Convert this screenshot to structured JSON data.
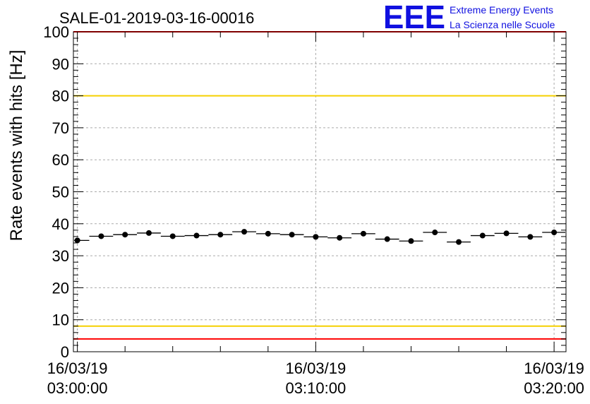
{
  "chart_data": {
    "type": "scatter",
    "title": "SALE-01-2019-03-16-00016",
    "ylabel": "Rate events with hits [Hz]",
    "xlabel": "",
    "ylim": [
      0,
      100
    ],
    "yticks": [
      "0",
      "10",
      "20",
      "30",
      "40",
      "50",
      "60",
      "70",
      "80",
      "90",
      "100"
    ],
    "xlim_minutes": [
      -0.1667,
      20.5
    ],
    "xticks": [
      {
        "minute": 0,
        "date": "16/03/19",
        "time": "03:00:00"
      },
      {
        "minute": 10,
        "date": "16/03/19",
        "time": "03:10:00"
      },
      {
        "minute": 20,
        "date": "16/03/19",
        "time": "03:20:00"
      }
    ],
    "grid": true,
    "bin_width_minutes": 1,
    "series": [
      {
        "name": "rate",
        "x_minutes": [
          0,
          1,
          2,
          3,
          4,
          5,
          6,
          7,
          8,
          9,
          10,
          11,
          12,
          13,
          14,
          15,
          16,
          17,
          18,
          19,
          20
        ],
        "values": [
          34.8,
          36.1,
          36.6,
          37.1,
          36.1,
          36.3,
          36.6,
          37.5,
          36.9,
          36.6,
          35.9,
          35.6,
          36.9,
          35.2,
          34.6,
          37.3,
          34.3,
          36.3,
          37.0,
          35.9,
          37.3
        ]
      }
    ],
    "reference_lines": [
      {
        "name": "upper-red-limit",
        "y": 100,
        "color": "#ff0000"
      },
      {
        "name": "upper-yellow-limit",
        "y": 80,
        "color": "#f5d000"
      },
      {
        "name": "lower-yellow-limit",
        "y": 8,
        "color": "#f5d000"
      },
      {
        "name": "lower-red-limit",
        "y": 4,
        "color": "#ff0000"
      }
    ]
  },
  "logo": {
    "text": "EEE",
    "line1": "Extreme Energy Events",
    "line2": "La Scienza nelle Scuole",
    "color": "#1010e0"
  }
}
